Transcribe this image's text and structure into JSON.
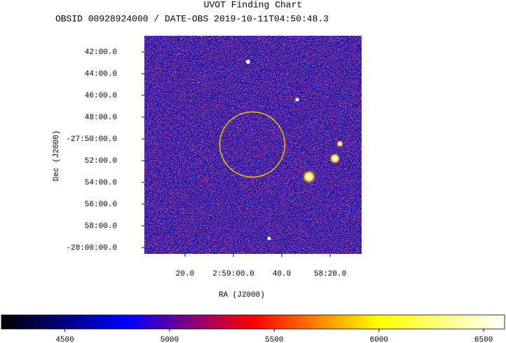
{
  "chart_data": {
    "type": "image",
    "title": "UVOT Finding Chart",
    "subtitle": "OBSID 00928924000 / DATE-OBS 2019-10-11T04:50:48.3",
    "x_label": "RA (J2000)",
    "y_label": "Dec (J2000)",
    "xlim": [
      44.90333,
      44.529167
    ],
    "xticks": [
      {
        "value": 44.833333,
        "label": "20.0"
      },
      {
        "value": 44.75,
        "label": "2:59:00.0"
      },
      {
        "value": 44.666667,
        "label": "40.0"
      },
      {
        "value": 44.583333,
        "label": "58:20.0"
      }
    ],
    "ylim": [
      -28.0097,
      -27.6753
    ],
    "yticks": [
      {
        "value": -27.7,
        "label": "42:00.0"
      },
      {
        "value": -27.733333,
        "label": "44:00.0"
      },
      {
        "value": -27.766667,
        "label": "46:00.0"
      },
      {
        "value": -27.8,
        "label": "48:00.0"
      },
      {
        "value": -27.833333,
        "label": "-27:50:00.0"
      },
      {
        "value": -27.866667,
        "label": "52:00.0"
      },
      {
        "value": -27.9,
        "label": "54:00.0"
      },
      {
        "value": -27.933333,
        "label": "56:00.0"
      },
      {
        "value": -27.966667,
        "label": "58:00.0"
      },
      {
        "value": -28.0,
        "label": "-28:00:00.0"
      }
    ],
    "colorbar": {
      "clim": [
        4197,
        6600
      ],
      "ticks": [
        4500,
        5000,
        5500,
        6000,
        6500
      ],
      "colormap": [
        "#000000",
        "#0000ff",
        "#ff0000",
        "#ffff00",
        "#ffffff"
      ]
    }
  }
}
